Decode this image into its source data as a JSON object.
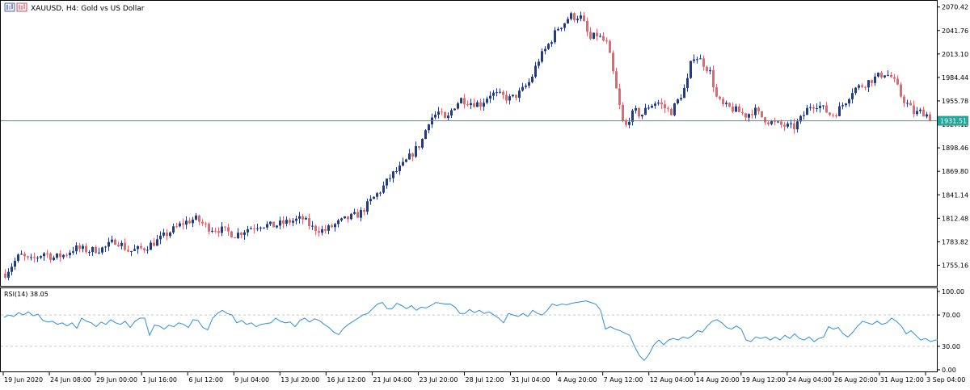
{
  "window": {
    "title": "XAUUSD, H4:  Gold vs US Dollar",
    "icon_name": "chart-window-icon"
  },
  "colors": {
    "bull": "#1f3a93",
    "bear": "#e8646e",
    "price_line": "#26a69a",
    "rsi_line": "#2f8fd8",
    "axis": "#000000",
    "grid": "#c8c8c8"
  },
  "chart_data": [
    {
      "type": "candlestick",
      "title": "XAUUSD, H4:  Gold vs US Dollar",
      "symbol": "XAUUSD",
      "timeframe": "H4",
      "ylim": [
        1730.0,
        2078.0
      ],
      "y_ticks": [
        "2070.42",
        "2041.76",
        "2013.10",
        "1984.44",
        "1955.78",
        "1927.12",
        "1898.46",
        "1869.80",
        "1841.14",
        "1812.48",
        "1783.82",
        "1755.16"
      ],
      "current_price": 1931.51,
      "current_price_label": "1931.51",
      "x_ticks": [
        "19 Jun 2020",
        "24 Jun 08:00",
        "29 Jun 00:00",
        "1 Jul 16:00",
        "6 Jul 12:00",
        "9 Jul 04:00",
        "13 Jul 20:00",
        "16 Jul 12:00",
        "21 Jul 04:00",
        "23 Jul 20:00",
        "28 Jul 12:00",
        "31 Jul 04:00",
        "4 Aug 20:00",
        "7 Aug 12:00",
        "12 Aug 04:00",
        "14 Aug 20:00",
        "19 Aug 12:00",
        "24 Aug 04:00",
        "26 Aug 20:00",
        "31 Aug 12:00",
        "3 Sep 04:00"
      ],
      "close_path": [
        [
          0,
          1745
        ],
        [
          15,
          1768
        ],
        [
          25,
          1760
        ],
        [
          40,
          1771
        ],
        [
          48,
          1764
        ],
        [
          60,
          1768
        ],
        [
          70,
          1776
        ],
        [
          85,
          1773
        ],
        [
          100,
          1776
        ],
        [
          112,
          1786
        ],
        [
          125,
          1772
        ],
        [
          140,
          1776
        ],
        [
          155,
          1786
        ],
        [
          165,
          1795
        ],
        [
          180,
          1807
        ],
        [
          192,
          1812
        ],
        [
          205,
          1801
        ],
        [
          220,
          1798
        ],
        [
          232,
          1792
        ],
        [
          245,
          1800
        ],
        [
          258,
          1805
        ],
        [
          270,
          1803
        ],
        [
          285,
          1808
        ],
        [
          300,
          1812
        ],
        [
          310,
          1801
        ],
        [
          322,
          1797
        ],
        [
          335,
          1806
        ],
        [
          345,
          1812
        ],
        [
          358,
          1818
        ],
        [
          370,
          1835
        ],
        [
          380,
          1848
        ],
        [
          390,
          1865
        ],
        [
          400,
          1875
        ],
        [
          410,
          1890
        ],
        [
          420,
          1905
        ],
        [
          428,
          1933
        ],
        [
          433,
          1938
        ],
        [
          438,
          1942
        ],
        [
          445,
          1930
        ],
        [
          452,
          1948
        ],
        [
          460,
          1958
        ],
        [
          470,
          1954
        ],
        [
          480,
          1952
        ],
        [
          490,
          1965
        ],
        [
          500,
          1962
        ],
        [
          510,
          1958
        ],
        [
          520,
          1966
        ],
        [
          530,
          1980
        ],
        [
          538,
          2005
        ],
        [
          545,
          2018
        ],
        [
          552,
          2032
        ],
        [
          558,
          2045
        ],
        [
          565,
          2052
        ],
        [
          570,
          2060
        ],
        [
          575,
          2058
        ],
        [
          580,
          2060
        ],
        [
          585,
          2048
        ],
        [
          590,
          2030
        ],
        [
          597,
          2037
        ],
        [
          603,
          2030
        ],
        [
          608,
          2025
        ],
        [
          612,
          2000
        ],
        [
          616,
          1975
        ],
        [
          620,
          1950
        ],
        [
          625,
          1920
        ],
        [
          630,
          1935
        ],
        [
          636,
          1943
        ],
        [
          642,
          1938
        ],
        [
          650,
          1950
        ],
        [
          658,
          1955
        ],
        [
          665,
          1948
        ],
        [
          672,
          1942
        ],
        [
          680,
          1958
        ],
        [
          688,
          1976
        ],
        [
          694,
          2012
        ],
        [
          700,
          2008
        ],
        [
          706,
          2000
        ],
        [
          712,
          1990
        ],
        [
          718,
          1960
        ],
        [
          724,
          1950
        ],
        [
          732,
          1947
        ],
        [
          740,
          1943
        ],
        [
          748,
          1938
        ],
        [
          756,
          1945
        ],
        [
          764,
          1936
        ],
        [
          772,
          1930
        ],
        [
          780,
          1927
        ],
        [
          788,
          1925
        ],
        [
          796,
          1923
        ],
        [
          804,
          1935
        ],
        [
          812,
          1950
        ],
        [
          820,
          1952
        ],
        [
          828,
          1944
        ],
        [
          834,
          1938
        ],
        [
          840,
          1943
        ],
        [
          848,
          1955
        ],
        [
          856,
          1970
        ],
        [
          864,
          1974
        ],
        [
          872,
          1980
        ],
        [
          880,
          1985
        ],
        [
          888,
          1990
        ],
        [
          895,
          1984
        ],
        [
          900,
          1974
        ],
        [
          905,
          1960
        ],
        [
          912,
          1950
        ],
        [
          918,
          1940
        ],
        [
          925,
          1943
        ],
        [
          932,
          1938
        ],
        [
          936,
          1931
        ]
      ]
    },
    {
      "type": "line",
      "title": "RSI(14) 38.05",
      "indicator": "RSI",
      "period": 14,
      "value_label": "38.05",
      "ylim": [
        0,
        100
      ],
      "y_ticks": [
        "100.00",
        "70.00",
        "30.00",
        "0.00"
      ],
      "levels": [
        70,
        30
      ],
      "points": [
        [
          0,
          67
        ],
        [
          6,
          70
        ],
        [
          12,
          68
        ],
        [
          18,
          73
        ],
        [
          24,
          70
        ],
        [
          30,
          74
        ],
        [
          36,
          69
        ],
        [
          42,
          71
        ],
        [
          48,
          63
        ],
        [
          54,
          61
        ],
        [
          60,
          62
        ],
        [
          66,
          58
        ],
        [
          72,
          60
        ],
        [
          78,
          56
        ],
        [
          84,
          60
        ],
        [
          90,
          53
        ],
        [
          96,
          66
        ],
        [
          102,
          62
        ],
        [
          108,
          60
        ],
        [
          114,
          55
        ],
        [
          120,
          61
        ],
        [
          126,
          58
        ],
        [
          132,
          64
        ],
        [
          138,
          60
        ],
        [
          144,
          58
        ],
        [
          150,
          62
        ],
        [
          156,
          54
        ],
        [
          162,
          62
        ],
        [
          168,
          66
        ],
        [
          174,
          66
        ],
        [
          180,
          44
        ],
        [
          186,
          57
        ],
        [
          192,
          56
        ],
        [
          198,
          52
        ],
        [
          204,
          57
        ],
        [
          210,
          55
        ],
        [
          216,
          60
        ],
        [
          222,
          58
        ],
        [
          228,
          54
        ],
        [
          234,
          64
        ],
        [
          240,
          63
        ],
        [
          246,
          54
        ],
        [
          252,
          51
        ],
        [
          258,
          66
        ],
        [
          264,
          72
        ],
        [
          270,
          76
        ],
        [
          276,
          72
        ],
        [
          282,
          70
        ],
        [
          288,
          60
        ],
        [
          294,
          63
        ],
        [
          300,
          58
        ],
        [
          306,
          60
        ],
        [
          312,
          55
        ],
        [
          318,
          58
        ],
        [
          324,
          59
        ],
        [
          330,
          60
        ],
        [
          336,
          66
        ],
        [
          342,
          62
        ],
        [
          348,
          60
        ],
        [
          354,
          61
        ],
        [
          360,
          55
        ],
        [
          366,
          63
        ],
        [
          372,
          66
        ],
        [
          378,
          61
        ],
        [
          384,
          65
        ],
        [
          390,
          63
        ],
        [
          396,
          58
        ],
        [
          402,
          54
        ],
        [
          408,
          48
        ],
        [
          414,
          45
        ],
        [
          420,
          53
        ],
        [
          426,
          58
        ],
        [
          432,
          62
        ],
        [
          438,
          66
        ],
        [
          444,
          70
        ],
        [
          450,
          72
        ],
        [
          456,
          78
        ],
        [
          462,
          84
        ],
        [
          468,
          86
        ],
        [
          474,
          78
        ],
        [
          480,
          78
        ],
        [
          486,
          85
        ],
        [
          492,
          82
        ],
        [
          498,
          78
        ],
        [
          504,
          82
        ],
        [
          510,
          76
        ],
        [
          516,
          80
        ],
        [
          522,
          79
        ],
        [
          528,
          82
        ],
        [
          534,
          86
        ],
        [
          540,
          85
        ],
        [
          546,
          84
        ],
        [
          552,
          84
        ],
        [
          558,
          80
        ],
        [
          564,
          72
        ],
        [
          570,
          72
        ],
        [
          576,
          77
        ],
        [
          582,
          73
        ],
        [
          588,
          76
        ],
        [
          594,
          72
        ],
        [
          600,
          74
        ],
        [
          606,
          70
        ],
        [
          612,
          66
        ],
        [
          618,
          60
        ],
        [
          624,
          72
        ],
        [
          630,
          70
        ],
        [
          636,
          68
        ],
        [
          642,
          72
        ],
        [
          648,
          68
        ],
        [
          654,
          76
        ],
        [
          660,
          72
        ],
        [
          666,
          70
        ],
        [
          672,
          76
        ],
        [
          678,
          84
        ],
        [
          684,
          82
        ],
        [
          690,
          84
        ],
        [
          696,
          83
        ],
        [
          702,
          85
        ],
        [
          708,
          86
        ],
        [
          714,
          87
        ],
        [
          720,
          88
        ],
        [
          726,
          86
        ],
        [
          732,
          84
        ],
        [
          738,
          76
        ],
        [
          744,
          52
        ],
        [
          750,
          55
        ],
        [
          756,
          52
        ],
        [
          762,
          50
        ],
        [
          768,
          47
        ],
        [
          774,
          44
        ],
        [
          780,
          30
        ],
        [
          786,
          18
        ],
        [
          792,
          12
        ],
        [
          798,
          20
        ],
        [
          804,
          32
        ],
        [
          810,
          38
        ],
        [
          816,
          32
        ],
        [
          822,
          38
        ],
        [
          828,
          40
        ],
        [
          834,
          38
        ],
        [
          840,
          42
        ],
        [
          846,
          40
        ],
        [
          852,
          44
        ],
        [
          858,
          50
        ],
        [
          864,
          48
        ],
        [
          870,
          56
        ],
        [
          876,
          62
        ],
        [
          882,
          64
        ],
        [
          888,
          60
        ],
        [
          894,
          54
        ],
        [
          900,
          52
        ],
        [
          906,
          56
        ],
        [
          912,
          52
        ],
        [
          918,
          38
        ],
        [
          924,
          36
        ],
        [
          930,
          42
        ],
        [
          936,
          40
        ],
        [
          942,
          42
        ],
        [
          948,
          38
        ],
        [
          954,
          42
        ],
        [
          960,
          38
        ],
        [
          966,
          44
        ],
        [
          972,
          40
        ],
        [
          978,
          46
        ],
        [
          984,
          40
        ],
        [
          990,
          38
        ],
        [
          996,
          42
        ],
        [
          1002,
          36
        ],
        [
          1008,
          40
        ],
        [
          1014,
          42
        ],
        [
          1020,
          55
        ],
        [
          1026,
          52
        ],
        [
          1032,
          54
        ],
        [
          1038,
          46
        ],
        [
          1044,
          42
        ],
        [
          1050,
          48
        ],
        [
          1056,
          56
        ],
        [
          1062,
          62
        ],
        [
          1068,
          60
        ],
        [
          1074,
          58
        ],
        [
          1080,
          62
        ],
        [
          1086,
          58
        ],
        [
          1092,
          60
        ],
        [
          1098,
          66
        ],
        [
          1104,
          62
        ],
        [
          1110,
          56
        ],
        [
          1116,
          46
        ],
        [
          1122,
          50
        ],
        [
          1128,
          44
        ],
        [
          1134,
          38
        ],
        [
          1140,
          40
        ],
        [
          1146,
          36
        ],
        [
          1152,
          38
        ],
        [
          1155,
          38
        ]
      ]
    }
  ]
}
